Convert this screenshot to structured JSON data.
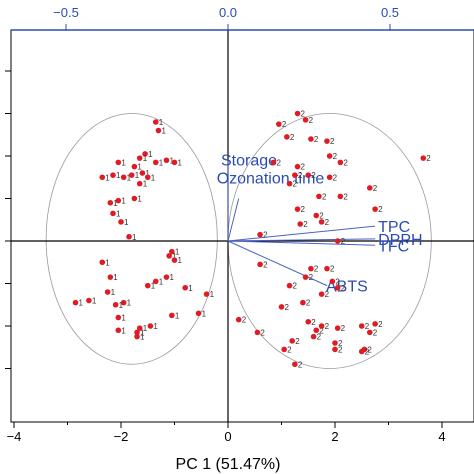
{
  "chart_data": {
    "type": "scatter",
    "subtype": "pca-biplot",
    "title": "",
    "xlabel": "PC 1 (51.47%)",
    "ylabel": "",
    "xlim": [
      -4,
      4
    ],
    "x_ticks": [
      -4,
      -2,
      0,
      2,
      4
    ],
    "top_axis": {
      "lim": [
        -0.8,
        0.8
      ],
      "ticks": [
        "-0.5",
        "0.0",
        "0.5"
      ],
      "tick_values": [
        -0.5,
        0.0,
        0.5
      ],
      "color": "#2b4bb5"
    },
    "grid": false,
    "series": [
      {
        "name": "1",
        "marker": "red-dot",
        "points": [
          [
            -1.35,
            2.8
          ],
          [
            -1.3,
            2.6
          ],
          [
            -1.55,
            2.05
          ],
          [
            -1.65,
            1.95
          ],
          [
            -1.35,
            1.85
          ],
          [
            -1.15,
            1.9
          ],
          [
            -1.0,
            1.85
          ],
          [
            -2.05,
            1.85
          ],
          [
            -1.75,
            1.75
          ],
          [
            -2.15,
            1.55
          ],
          [
            -1.95,
            1.5
          ],
          [
            -1.8,
            1.55
          ],
          [
            -1.6,
            1.6
          ],
          [
            -1.5,
            1.5
          ],
          [
            -2.35,
            1.5
          ],
          [
            -1.65,
            1.35
          ],
          [
            -1.75,
            1.0
          ],
          [
            -2.05,
            0.95
          ],
          [
            -2.2,
            0.9
          ],
          [
            -2.15,
            0.65
          ],
          [
            -2.0,
            0.45
          ],
          [
            -1.85,
            0.1
          ],
          [
            -2.35,
            -0.5
          ],
          [
            -1.05,
            -0.25
          ],
          [
            -1.1,
            -0.35
          ],
          [
            -1.0,
            -0.45
          ],
          [
            -1.15,
            -0.85
          ],
          [
            -1.35,
            -0.95
          ],
          [
            -2.2,
            -0.85
          ],
          [
            -2.25,
            -1.2
          ],
          [
            -1.5,
            -1.05
          ],
          [
            -0.8,
            -1.1
          ],
          [
            -0.4,
            -1.25
          ],
          [
            -1.95,
            -1.45
          ],
          [
            -2.6,
            -1.4
          ],
          [
            -2.85,
            -1.45
          ],
          [
            -2.1,
            -1.5
          ],
          [
            -0.55,
            -1.7
          ],
          [
            -1.05,
            -1.75
          ],
          [
            -2.05,
            -1.8
          ],
          [
            -1.45,
            -2.0
          ],
          [
            -1.65,
            -2.05
          ],
          [
            -1.7,
            -2.15
          ],
          [
            -2.05,
            -2.1
          ],
          [
            -1.7,
            -2.25
          ]
        ]
      },
      {
        "name": "2",
        "marker": "red-dot",
        "points": [
          [
            1.3,
            3.0
          ],
          [
            1.45,
            2.85
          ],
          [
            0.95,
            2.75
          ],
          [
            1.1,
            2.45
          ],
          [
            1.55,
            2.4
          ],
          [
            1.85,
            2.35
          ],
          [
            1.9,
            2.0
          ],
          [
            2.1,
            1.85
          ],
          [
            3.65,
            1.95
          ],
          [
            0.85,
            1.85
          ],
          [
            1.3,
            1.75
          ],
          [
            1.25,
            1.55
          ],
          [
            1.5,
            1.55
          ],
          [
            1.9,
            1.5
          ],
          [
            1.15,
            1.35
          ],
          [
            2.65,
            1.25
          ],
          [
            1.7,
            1.05
          ],
          [
            2.1,
            1.05
          ],
          [
            2.75,
            0.75
          ],
          [
            1.3,
            0.75
          ],
          [
            1.65,
            0.6
          ],
          [
            1.75,
            0.45
          ],
          [
            1.35,
            0.4
          ],
          [
            0.6,
            0.15
          ],
          [
            2.05,
            0.0
          ],
          [
            0.6,
            -0.55
          ],
          [
            1.55,
            -0.65
          ],
          [
            1.85,
            -0.65
          ],
          [
            1.95,
            -0.95
          ],
          [
            1.45,
            -0.85
          ],
          [
            2.05,
            -1.1
          ],
          [
            1.15,
            -1.05
          ],
          [
            1.0,
            -1.55
          ],
          [
            1.4,
            -1.45
          ],
          [
            1.75,
            -1.25
          ],
          [
            0.2,
            -1.85
          ],
          [
            1.5,
            -1.9
          ],
          [
            1.65,
            -2.1
          ],
          [
            1.75,
            -2.0
          ],
          [
            2.05,
            -2.05
          ],
          [
            2.5,
            -2.0
          ],
          [
            2.75,
            -1.95
          ],
          [
            2.65,
            -2.15
          ],
          [
            0.55,
            -2.15
          ],
          [
            1.6,
            -2.25
          ],
          [
            1.2,
            -2.35
          ],
          [
            2.0,
            -2.4
          ],
          [
            2.55,
            -2.55
          ],
          [
            1.05,
            -2.55
          ],
          [
            2.5,
            -2.6
          ],
          [
            2.0,
            -2.55
          ],
          [
            1.25,
            -2.9
          ]
        ]
      }
    ],
    "loadings": [
      {
        "name": "Storage",
        "x": 0.0,
        "y": 1.92
      },
      {
        "name": "Ozonation time",
        "x": 0.2,
        "y": 1.0
      },
      {
        "name": "TPC",
        "x": 2.75,
        "y": 0.35
      },
      {
        "name": "DPPH",
        "x": 2.75,
        "y": 0.05
      },
      {
        "name": "TFC",
        "x": 2.75,
        "y": -0.1
      },
      {
        "name": "ABTS",
        "x": 1.85,
        "y": -1.05
      }
    ],
    "ellipses": [
      {
        "group": "1",
        "cx": -1.8,
        "cy": 0.05,
        "rx": 1.6,
        "ry": 2.95
      },
      {
        "group": "2",
        "cx": 1.9,
        "cy": 0.0,
        "rx": 1.9,
        "ry": 3.0
      }
    ]
  }
}
